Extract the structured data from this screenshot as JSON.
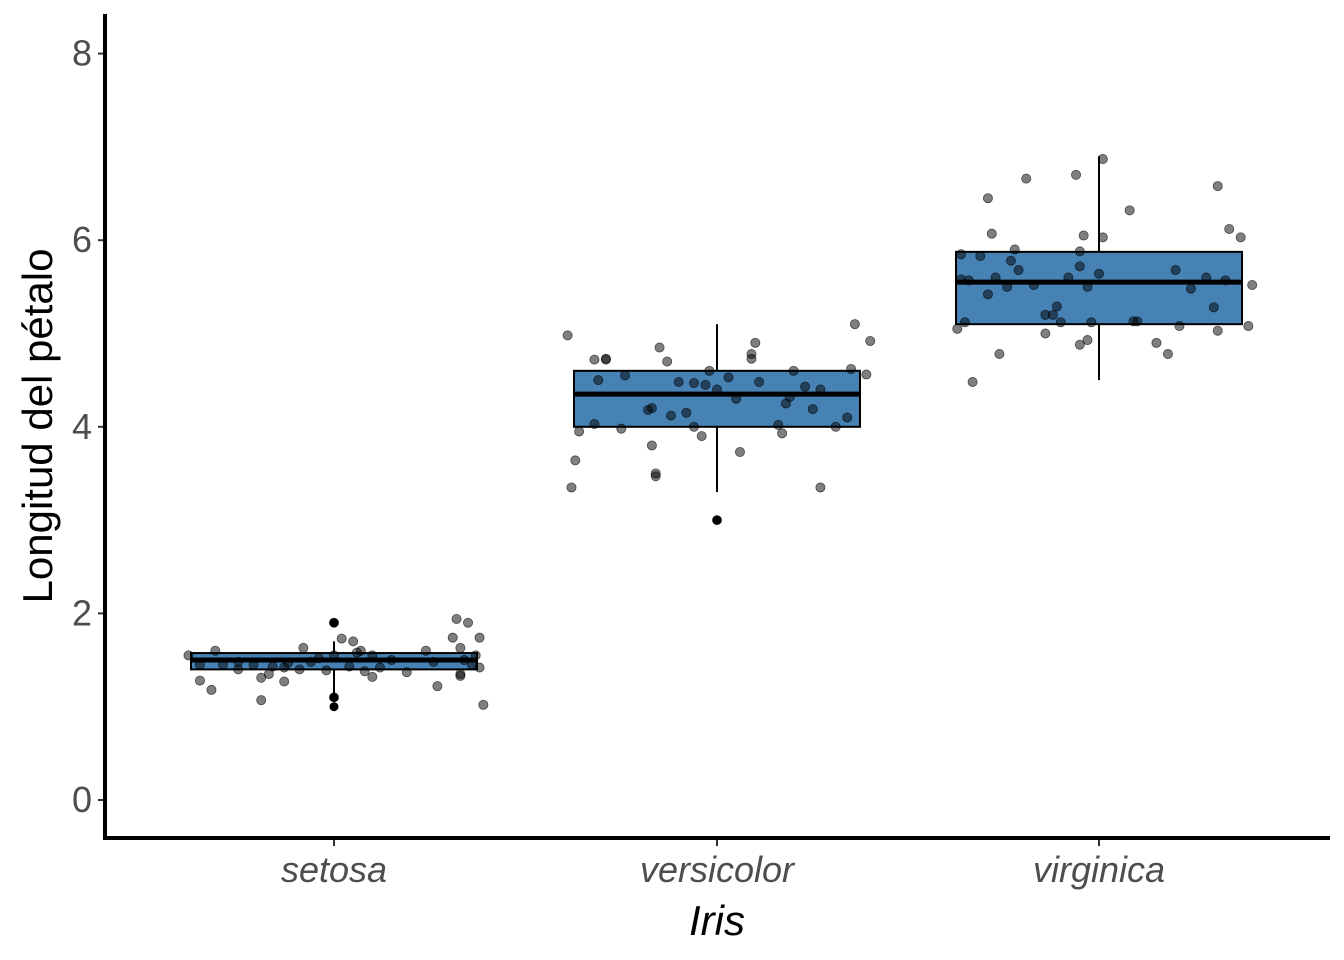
{
  "chart_data": {
    "type": "boxplot",
    "xlabel": "Iris",
    "ylabel": "Longitud del pétalo",
    "ylim": [
      -0.35,
      8.4
    ],
    "yticks": [
      0,
      2,
      4,
      6,
      8
    ],
    "grid": false,
    "legend": "none",
    "box_fill": "#4682B4",
    "box_stroke": "#000000",
    "point_color": "#000000",
    "point_opacity": 0.5,
    "categories": [
      "setosa",
      "versicolor",
      "virginica"
    ],
    "boxes": [
      {
        "category": "setosa",
        "min": 1.1,
        "q1": 1.4,
        "median": 1.5,
        "q3": 1.575,
        "max": 1.7,
        "outliers": [
          1.0,
          1.1,
          1.9,
          1.9
        ]
      },
      {
        "category": "versicolor",
        "min": 3.3,
        "q1": 4.0,
        "median": 4.35,
        "q3": 4.6,
        "max": 5.1,
        "outliers": [
          3.0
        ]
      },
      {
        "category": "virginica",
        "min": 4.5,
        "q1": 5.1,
        "median": 5.55,
        "q3": 5.875,
        "max": 6.9,
        "outliers": []
      }
    ],
    "points": {
      "setosa": [
        {
          "dx": -0.38,
          "y": 1.55
        },
        {
          "dx": -0.35,
          "y": 1.28
        },
        {
          "dx": -0.32,
          "y": 1.18
        },
        {
          "dx": -0.35,
          "y": 1.45
        },
        {
          "dx": -0.31,
          "y": 1.6
        },
        {
          "dx": -0.29,
          "y": 1.45
        },
        {
          "dx": -0.25,
          "y": 1.48
        },
        {
          "dx": -0.25,
          "y": 1.4
        },
        {
          "dx": -0.21,
          "y": 1.45
        },
        {
          "dx": -0.19,
          "y": 1.31
        },
        {
          "dx": -0.17,
          "y": 1.35
        },
        {
          "dx": -0.16,
          "y": 1.43
        },
        {
          "dx": -0.19,
          "y": 1.07
        },
        {
          "dx": -0.13,
          "y": 1.42
        },
        {
          "dx": -0.12,
          "y": 1.47
        },
        {
          "dx": -0.13,
          "y": 1.27
        },
        {
          "dx": -0.09,
          "y": 1.4
        },
        {
          "dx": -0.08,
          "y": 1.63
        },
        {
          "dx": -0.06,
          "y": 1.48
        },
        {
          "dx": -0.04,
          "y": 1.52
        },
        {
          "dx": -0.02,
          "y": 1.39
        },
        {
          "dx": 0.0,
          "y": 1.55
        },
        {
          "dx": 0.02,
          "y": 1.73
        },
        {
          "dx": 0.04,
          "y": 1.43
        },
        {
          "dx": 0.05,
          "y": 1.7
        },
        {
          "dx": 0.06,
          "y": 1.58
        },
        {
          "dx": 0.07,
          "y": 1.6
        },
        {
          "dx": 0.08,
          "y": 1.38
        },
        {
          "dx": 0.1,
          "y": 1.55
        },
        {
          "dx": 0.1,
          "y": 1.32
        },
        {
          "dx": 0.12,
          "y": 1.42
        },
        {
          "dx": 0.15,
          "y": 1.5
        },
        {
          "dx": 0.19,
          "y": 1.37
        },
        {
          "dx": 0.24,
          "y": 1.6
        },
        {
          "dx": 0.27,
          "y": 1.22
        },
        {
          "dx": 0.26,
          "y": 1.48
        },
        {
          "dx": 0.31,
          "y": 1.74
        },
        {
          "dx": 0.32,
          "y": 1.94
        },
        {
          "dx": 0.33,
          "y": 1.33
        },
        {
          "dx": 0.33,
          "y": 1.63
        },
        {
          "dx": 0.34,
          "y": 1.5
        },
        {
          "dx": 0.35,
          "y": 1.9
        },
        {
          "dx": 0.37,
          "y": 1.55
        },
        {
          "dx": 0.38,
          "y": 1.42
        },
        {
          "dx": 0.38,
          "y": 1.74
        },
        {
          "dx": 0.39,
          "y": 1.02
        },
        {
          "dx": 0.36,
          "y": 1.45
        },
        {
          "dx": 0.33,
          "y": 1.35
        },
        {
          "dx": 0.0,
          "y": 1.1
        },
        {
          "dx": 0.0,
          "y": 1.9
        }
      ],
      "versicolor": [
        {
          "dx": -0.39,
          "y": 4.98
        },
        {
          "dx": -0.38,
          "y": 3.35
        },
        {
          "dx": -0.37,
          "y": 3.64
        },
        {
          "dx": -0.36,
          "y": 3.95
        },
        {
          "dx": -0.32,
          "y": 4.03
        },
        {
          "dx": -0.32,
          "y": 4.72
        },
        {
          "dx": -0.31,
          "y": 4.5
        },
        {
          "dx": -0.29,
          "y": 4.72
        },
        {
          "dx": -0.29,
          "y": 4.73
        },
        {
          "dx": -0.25,
          "y": 3.98
        },
        {
          "dx": -0.24,
          "y": 4.55
        },
        {
          "dx": -0.17,
          "y": 3.8
        },
        {
          "dx": -0.16,
          "y": 3.5
        },
        {
          "dx": -0.16,
          "y": 3.47
        },
        {
          "dx": -0.15,
          "y": 4.85
        },
        {
          "dx": -0.13,
          "y": 4.7
        },
        {
          "dx": -0.18,
          "y": 4.18
        },
        {
          "dx": -0.17,
          "y": 4.2
        },
        {
          "dx": -0.12,
          "y": 4.12
        },
        {
          "dx": -0.1,
          "y": 4.48
        },
        {
          "dx": -0.08,
          "y": 4.15
        },
        {
          "dx": -0.06,
          "y": 4.0
        },
        {
          "dx": -0.04,
          "y": 3.9
        },
        {
          "dx": -0.03,
          "y": 4.45
        },
        {
          "dx": -0.02,
          "y": 4.6
        },
        {
          "dx": 0.0,
          "y": 4.4
        },
        {
          "dx": 0.03,
          "y": 4.53
        },
        {
          "dx": 0.06,
          "y": 3.73
        },
        {
          "dx": 0.05,
          "y": 4.3
        },
        {
          "dx": 0.09,
          "y": 4.78
        },
        {
          "dx": 0.09,
          "y": 4.73
        },
        {
          "dx": 0.11,
          "y": 4.48
        },
        {
          "dx": 0.1,
          "y": 4.9
        },
        {
          "dx": 0.16,
          "y": 4.02
        },
        {
          "dx": 0.18,
          "y": 4.25
        },
        {
          "dx": 0.19,
          "y": 4.32
        },
        {
          "dx": 0.17,
          "y": 3.93
        },
        {
          "dx": 0.2,
          "y": 4.6
        },
        {
          "dx": 0.23,
          "y": 4.43
        },
        {
          "dx": 0.25,
          "y": 4.19
        },
        {
          "dx": 0.27,
          "y": 3.35
        },
        {
          "dx": 0.27,
          "y": 4.4
        },
        {
          "dx": 0.31,
          "y": 4.0
        },
        {
          "dx": 0.34,
          "y": 4.1
        },
        {
          "dx": 0.35,
          "y": 4.62
        },
        {
          "dx": 0.36,
          "y": 5.1
        },
        {
          "dx": 0.39,
          "y": 4.56
        },
        {
          "dx": 0.4,
          "y": 4.92
        },
        {
          "dx": 0.0,
          "y": 3.0
        },
        {
          "dx": -0.06,
          "y": 4.47
        }
      ],
      "virginica": [
        {
          "dx": -0.37,
          "y": 5.05
        },
        {
          "dx": -0.36,
          "y": 5.85
        },
        {
          "dx": -0.36,
          "y": 5.58
        },
        {
          "dx": -0.35,
          "y": 5.12
        },
        {
          "dx": -0.34,
          "y": 5.57
        },
        {
          "dx": -0.33,
          "y": 4.48
        },
        {
          "dx": -0.31,
          "y": 5.83
        },
        {
          "dx": -0.29,
          "y": 6.45
        },
        {
          "dx": -0.29,
          "y": 5.42
        },
        {
          "dx": -0.28,
          "y": 6.07
        },
        {
          "dx": -0.27,
          "y": 5.6
        },
        {
          "dx": -0.26,
          "y": 4.78
        },
        {
          "dx": -0.24,
          "y": 5.5
        },
        {
          "dx": -0.23,
          "y": 5.78
        },
        {
          "dx": -0.22,
          "y": 5.9
        },
        {
          "dx": -0.21,
          "y": 5.68
        },
        {
          "dx": -0.19,
          "y": 6.66
        },
        {
          "dx": -0.17,
          "y": 5.52
        },
        {
          "dx": -0.14,
          "y": 5.0
        },
        {
          "dx": -0.14,
          "y": 5.2
        },
        {
          "dx": -0.12,
          "y": 5.2
        },
        {
          "dx": -0.11,
          "y": 5.29
        },
        {
          "dx": -0.1,
          "y": 5.12
        },
        {
          "dx": -0.08,
          "y": 5.6
        },
        {
          "dx": -0.06,
          "y": 6.7
        },
        {
          "dx": -0.05,
          "y": 4.88
        },
        {
          "dx": -0.05,
          "y": 5.88
        },
        {
          "dx": -0.05,
          "y": 5.72
        },
        {
          "dx": -0.04,
          "y": 6.05
        },
        {
          "dx": -0.03,
          "y": 4.93
        },
        {
          "dx": -0.03,
          "y": 5.5
        },
        {
          "dx": -0.02,
          "y": 5.12
        },
        {
          "dx": 0.0,
          "y": 5.64
        },
        {
          "dx": 0.01,
          "y": 6.87
        },
        {
          "dx": 0.01,
          "y": 6.03
        },
        {
          "dx": 0.08,
          "y": 6.32
        },
        {
          "dx": 0.09,
          "y": 5.13
        },
        {
          "dx": 0.1,
          "y": 5.13
        },
        {
          "dx": 0.15,
          "y": 4.9
        },
        {
          "dx": 0.18,
          "y": 4.78
        },
        {
          "dx": 0.2,
          "y": 5.68
        },
        {
          "dx": 0.21,
          "y": 5.08
        },
        {
          "dx": 0.24,
          "y": 5.48
        },
        {
          "dx": 0.28,
          "y": 5.6
        },
        {
          "dx": 0.3,
          "y": 5.28
        },
        {
          "dx": 0.31,
          "y": 5.03
        },
        {
          "dx": 0.31,
          "y": 6.58
        },
        {
          "dx": 0.33,
          "y": 5.57
        },
        {
          "dx": 0.34,
          "y": 6.12
        },
        {
          "dx": 0.37,
          "y": 6.03
        },
        {
          "dx": 0.39,
          "y": 5.08
        },
        {
          "dx": 0.4,
          "y": 5.52
        }
      ]
    }
  }
}
